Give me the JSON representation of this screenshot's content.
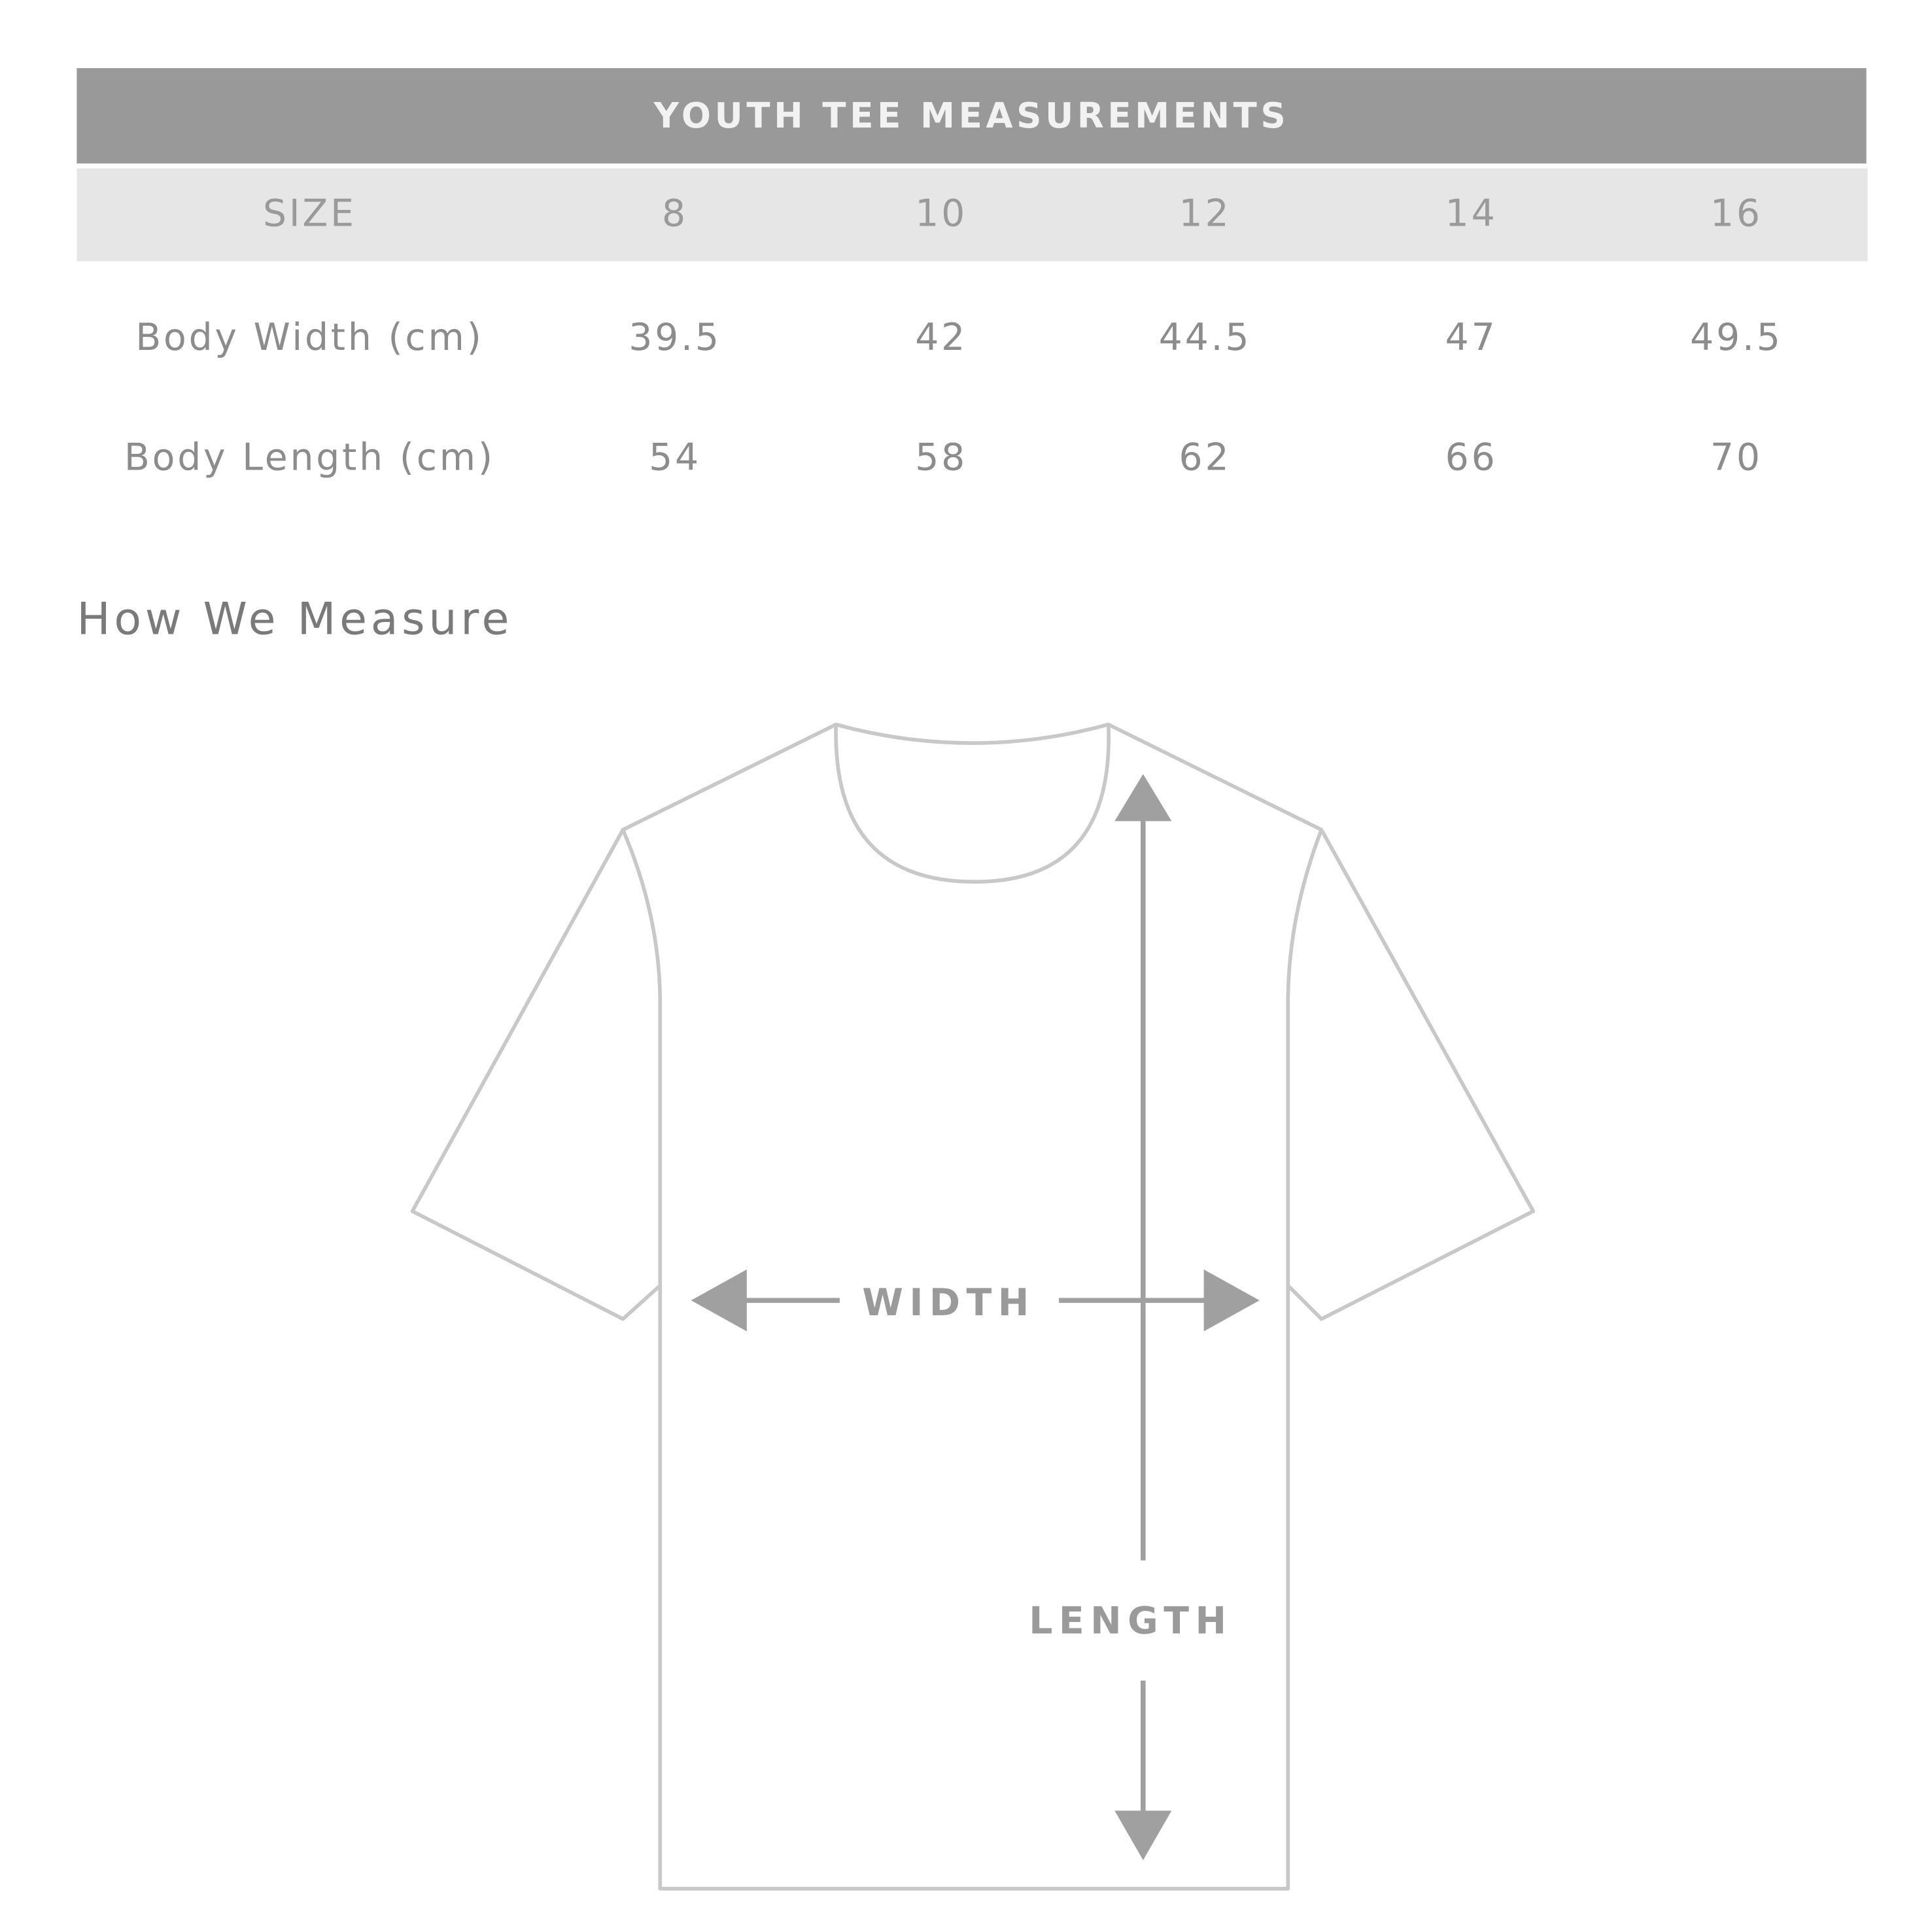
{
  "table": {
    "title": "YOUTH TEE MEASUREMENTS",
    "size_label": "SIZE",
    "sizes": [
      "8",
      "10",
      "12",
      "14",
      "16"
    ],
    "rows": [
      {
        "label": "Body Width (cm)",
        "values": [
          "39.5",
          "42",
          "44.5",
          "47",
          "49.5"
        ]
      },
      {
        "label": "Body Length (cm)",
        "values": [
          "54",
          "58",
          "62",
          "66",
          "70"
        ]
      }
    ]
  },
  "how_we_measure": {
    "title": "How We Measure",
    "width_label": "WIDTH",
    "length_label": "LENGTH"
  },
  "colors": {
    "header_bg": "#999999",
    "size_row_bg": "#e6e6e6",
    "outline": "#c8c8c8",
    "arrow": "#a0a0a0"
  }
}
